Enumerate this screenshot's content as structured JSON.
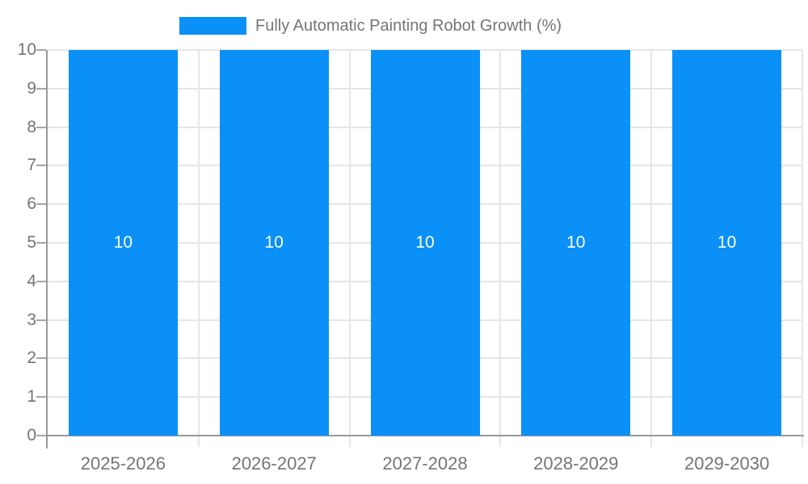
{
  "legend": {
    "label": "Fully Automatic Painting Robot Growth (%)"
  },
  "chart_data": {
    "type": "bar",
    "title": "Fully Automatic Painting Robot Growth (%)",
    "categories": [
      "2025-2026",
      "2026-2027",
      "2027-2028",
      "2028-2029",
      "2029-2030"
    ],
    "series": [
      {
        "name": "Fully Automatic Painting Robot Growth (%)",
        "values": [
          10,
          10,
          10,
          10,
          10
        ],
        "data_labels": [
          "10",
          "10",
          "10",
          "10",
          "10"
        ]
      }
    ],
    "xlabel": "",
    "ylabel": "",
    "ylim": [
      0,
      10
    ],
    "yticks": [
      0,
      1,
      2,
      3,
      4,
      5,
      6,
      7,
      8,
      9,
      10
    ],
    "grid": true,
    "legend_position": "top-center",
    "colors": {
      "bar": "#0a90f7",
      "gridline": "#e6e6e6",
      "axis": "#999999",
      "tick_text": "#757575",
      "value_label": "#ffffff",
      "background": "#ffffff"
    }
  }
}
